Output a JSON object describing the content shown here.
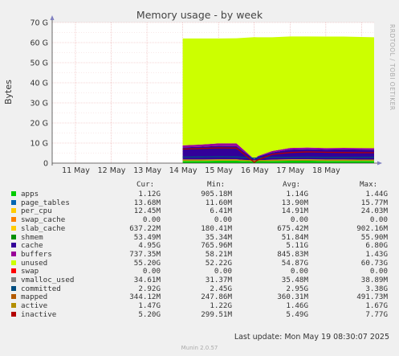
{
  "title": "Memory usage - by week",
  "side_label": "RRDTOOL / TOBI OETIKER",
  "footer": {
    "last_update": "Last update: Mon May 19 08:30:07 2025",
    "version": "Munin 2.0.57"
  },
  "legend_header": [
    "Cur:",
    "Min:",
    "Avg:",
    "Max:"
  ],
  "legend": [
    {
      "name": "apps",
      "color": "#00cc00",
      "cur": "1.12G",
      "min": "905.18M",
      "avg": "1.14G",
      "max": "1.44G"
    },
    {
      "name": "page_tables",
      "color": "#0066b3",
      "cur": "13.68M",
      "min": "11.60M",
      "avg": "13.90M",
      "max": "15.77M"
    },
    {
      "name": "per_cpu",
      "color": "#ffcc00",
      "cur": "12.45M",
      "min": "6.41M",
      "avg": "14.91M",
      "max": "24.03M"
    },
    {
      "name": "swap_cache",
      "color": "#ff8000",
      "cur": "0.00",
      "min": "0.00",
      "avg": "0.00",
      "max": "0.00"
    },
    {
      "name": "slab_cache",
      "color": "#ffcc00",
      "cur": "637.22M",
      "min": "180.41M",
      "avg": "675.42M",
      "max": "902.16M"
    },
    {
      "name": "shmem",
      "color": "#008f00",
      "cur": "53.49M",
      "min": "35.34M",
      "avg": "51.84M",
      "max": "55.90M"
    },
    {
      "name": "cache",
      "color": "#330099",
      "cur": "4.95G",
      "min": "765.96M",
      "avg": "5.11G",
      "max": "6.80G"
    },
    {
      "name": "buffers",
      "color": "#990099",
      "cur": "737.35M",
      "min": "58.21M",
      "avg": "845.83M",
      "max": "1.43G"
    },
    {
      "name": "unused",
      "color": "#ccff00",
      "cur": "55.20G",
      "min": "52.22G",
      "avg": "54.87G",
      "max": "60.73G"
    },
    {
      "name": "swap",
      "color": "#ff0000",
      "cur": "0.00",
      "min": "0.00",
      "avg": "0.00",
      "max": "0.00"
    },
    {
      "name": "vmalloc_used",
      "color": "#808080",
      "cur": "34.61M",
      "min": "31.37M",
      "avg": "35.48M",
      "max": "38.89M"
    },
    {
      "name": "committed",
      "color": "#004d80",
      "cur": "2.92G",
      "min": "2.45G",
      "avg": "2.95G",
      "max": "3.38G"
    },
    {
      "name": "mapped",
      "color": "#b35a00",
      "cur": "344.12M",
      "min": "247.86M",
      "avg": "360.31M",
      "max": "491.73M"
    },
    {
      "name": "active",
      "color": "#b38f00",
      "cur": "1.47G",
      "min": "1.22G",
      "avg": "1.46G",
      "max": "1.67G"
    },
    {
      "name": "inactive",
      "color": "#b30000",
      "cur": "5.20G",
      "min": "299.51M",
      "avg": "5.49G",
      "max": "7.77G"
    }
  ],
  "chart_data": {
    "type": "area",
    "title": "Memory usage - by week",
    "ylabel": "Bytes",
    "ylim": [
      0,
      70
    ],
    "y_unit": "G",
    "y_ticks": [
      "0",
      "10 G",
      "20 G",
      "30 G",
      "40 G",
      "50 G",
      "60 G",
      "70 G"
    ],
    "categories": [
      "11 May",
      "12 May",
      "13 May",
      "14 May",
      "15 May",
      "16 May",
      "17 May",
      "18 May"
    ],
    "x": [
      14.0,
      14.5,
      15.0,
      15.5,
      16.0,
      16.1,
      16.5,
      17.0,
      17.5,
      18.0,
      18.5,
      19.35
    ],
    "stack_series": [
      {
        "name": "apps",
        "color": "#00cc00",
        "values": [
          1.1,
          1.1,
          1.2,
          1.2,
          0.9,
          1.0,
          1.1,
          1.2,
          1.2,
          1.1,
          1.1,
          1.1
        ]
      },
      {
        "name": "slab_cache",
        "color": "#ffcc00",
        "values": [
          0.7,
          0.7,
          0.7,
          0.7,
          0.2,
          0.4,
          0.6,
          0.7,
          0.7,
          0.7,
          0.7,
          0.6
        ]
      },
      {
        "name": "shmem",
        "color": "#008f00",
        "values": [
          0.05,
          0.05,
          0.05,
          0.05,
          0.04,
          0.05,
          0.05,
          0.05,
          0.05,
          0.05,
          0.05,
          0.05
        ]
      },
      {
        "name": "cache",
        "color": "#330099",
        "values": [
          6.0,
          6.3,
          6.6,
          6.5,
          0.8,
          1.8,
          3.6,
          4.8,
          5.0,
          4.9,
          5.0,
          4.95
        ]
      },
      {
        "name": "buffers",
        "color": "#990099",
        "values": [
          1.0,
          1.1,
          1.3,
          1.4,
          0.06,
          0.3,
          0.7,
          0.8,
          0.8,
          0.75,
          0.75,
          0.74
        ]
      },
      {
        "name": "unused",
        "color": "#ccff00",
        "values": [
          53.2,
          52.8,
          52.2,
          52.3,
          60.7,
          59.1,
          56.6,
          55.5,
          55.3,
          55.5,
          55.4,
          55.2
        ]
      }
    ],
    "line_series": [
      {
        "name": "committed",
        "color": "#004d80",
        "values": [
          3.0,
          3.1,
          3.2,
          3.1,
          2.5,
          2.6,
          2.9,
          2.9,
          3.0,
          2.9,
          2.9,
          2.92
        ]
      },
      {
        "name": "active",
        "color": "#b38f00",
        "values": [
          1.5,
          1.5,
          1.6,
          1.6,
          1.2,
          1.3,
          1.4,
          1.5,
          1.5,
          1.5,
          1.5,
          1.47
        ]
      },
      {
        "name": "inactive",
        "color": "#b30000",
        "values": [
          7.0,
          7.3,
          7.6,
          7.5,
          0.4,
          1.6,
          4.4,
          5.3,
          5.6,
          5.4,
          5.3,
          5.2
        ]
      }
    ]
  }
}
